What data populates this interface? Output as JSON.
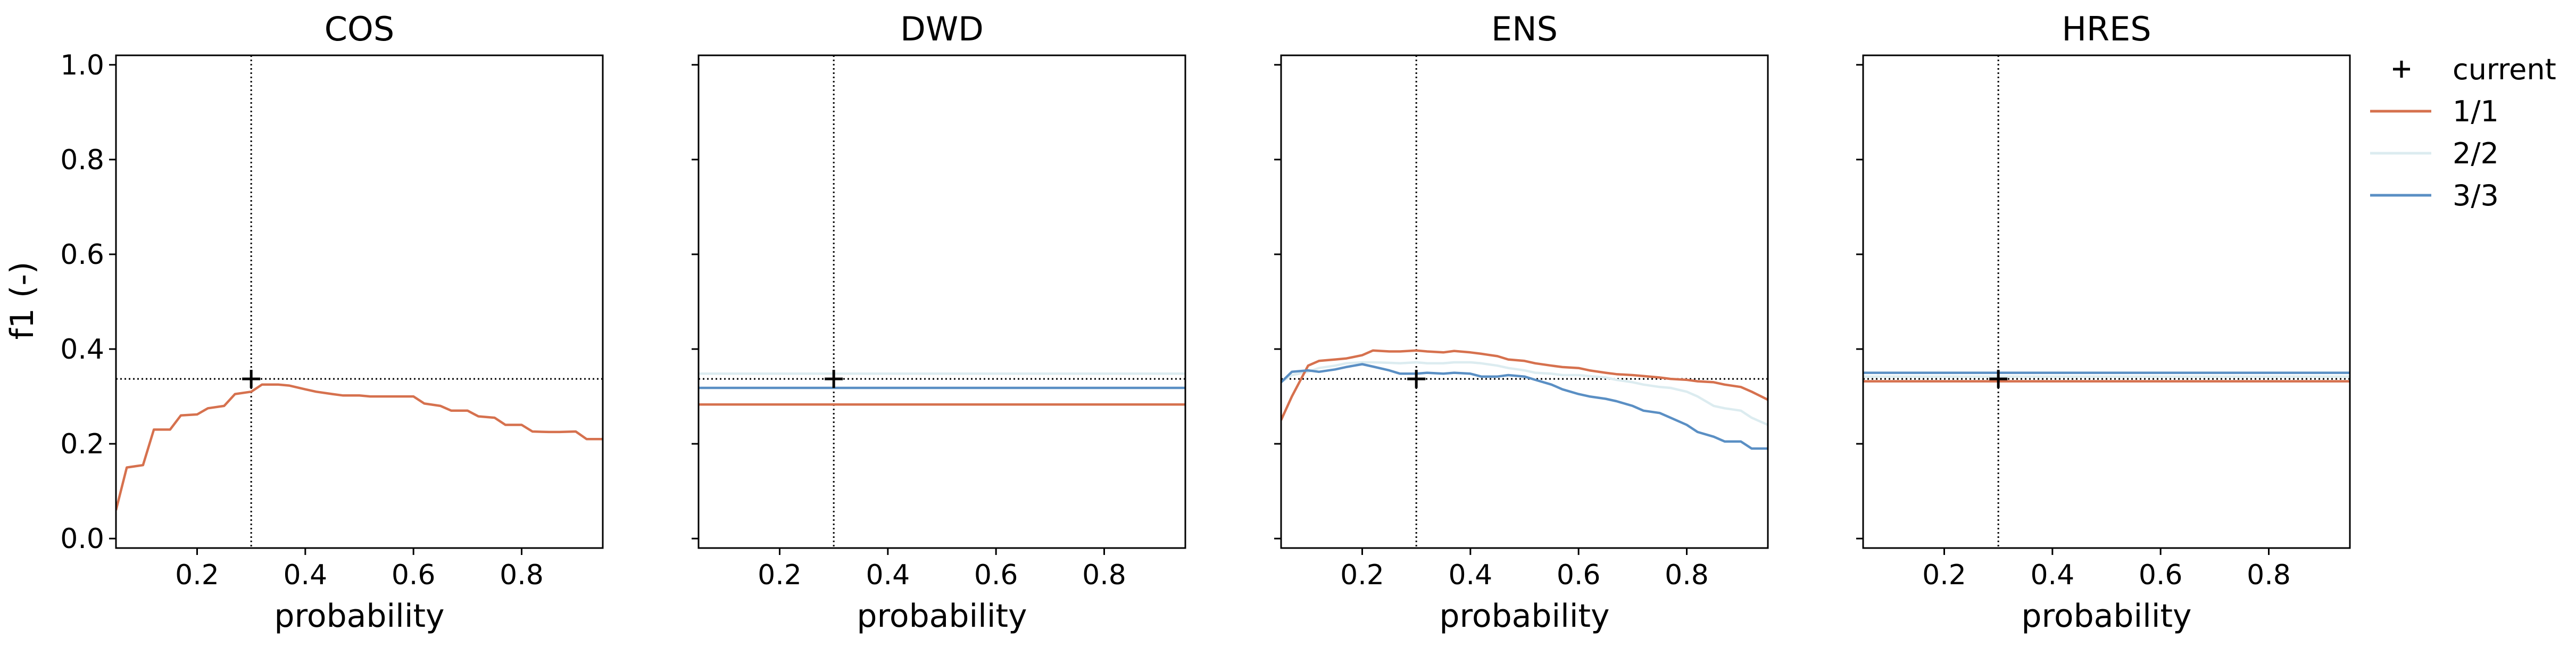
{
  "chart_data": {
    "type": "line",
    "ylabel": "f1 (-)",
    "ylim": [
      -0.02,
      1.02
    ],
    "yticks": [
      0.0,
      0.2,
      0.4,
      0.6,
      0.8,
      1.0
    ],
    "ytick_labels": [
      "0.0",
      "0.2",
      "0.4",
      "0.6",
      "0.8",
      "1.0"
    ],
    "xlim": [
      0.05,
      0.95
    ],
    "xticks": [
      0.2,
      0.4,
      0.6,
      0.8
    ],
    "xtick_labels": [
      "0.2",
      "0.4",
      "0.6",
      "0.8"
    ],
    "reference": {
      "x": 0.3,
      "y": 0.337
    },
    "legend": {
      "placement": "outside-right",
      "entries": [
        {
          "label": "current",
          "marker": "+",
          "color": "#000000"
        },
        {
          "label": "1/1",
          "color": "#d6714e"
        },
        {
          "label": "2/2",
          "color": "#dcecf0"
        },
        {
          "label": "3/3",
          "color": "#5a8fc4"
        }
      ]
    },
    "panels": [
      {
        "title": "COS",
        "xlabel": "probability",
        "show_ytick_labels": true,
        "series": [
          {
            "legend_index": 1,
            "color": "#d6714e",
            "x": [
              0.05,
              0.07,
              0.1,
              0.12,
              0.15,
              0.17,
              0.2,
              0.22,
              0.25,
              0.27,
              0.3,
              0.32,
              0.35,
              0.37,
              0.4,
              0.42,
              0.45,
              0.47,
              0.5,
              0.52,
              0.55,
              0.57,
              0.6,
              0.62,
              0.65,
              0.67,
              0.7,
              0.72,
              0.75,
              0.77,
              0.8,
              0.82,
              0.85,
              0.87,
              0.9,
              0.92,
              0.95
            ],
            "y": [
              0.06,
              0.15,
              0.155,
              0.23,
              0.23,
              0.26,
              0.262,
              0.275,
              0.28,
              0.305,
              0.31,
              0.325,
              0.325,
              0.323,
              0.315,
              0.31,
              0.305,
              0.302,
              0.302,
              0.3,
              0.3,
              0.3,
              0.3,
              0.285,
              0.28,
              0.27,
              0.27,
              0.258,
              0.255,
              0.24,
              0.24,
              0.226,
              0.225,
              0.225,
              0.226,
              0.21,
              0.21
            ]
          }
        ]
      },
      {
        "title": "DWD",
        "xlabel": "probability",
        "show_ytick_labels": false,
        "series": [
          {
            "legend_index": 2,
            "color": "#dcecf0",
            "x": [
              0.05,
              0.95
            ],
            "y": [
              0.348,
              0.348
            ]
          },
          {
            "legend_index": 3,
            "color": "#5a8fc4",
            "x": [
              0.05,
              0.95
            ],
            "y": [
              0.318,
              0.318
            ]
          },
          {
            "legend_index": 1,
            "color": "#d6714e",
            "x": [
              0.05,
              0.95
            ],
            "y": [
              0.283,
              0.283
            ]
          }
        ]
      },
      {
        "title": "ENS",
        "xlabel": "probability",
        "show_ytick_labels": false,
        "series": [
          {
            "legend_index": 2,
            "color": "#dcecf0",
            "x": [
              0.05,
              0.07,
              0.1,
              0.12,
              0.15,
              0.17,
              0.2,
              0.22,
              0.25,
              0.27,
              0.3,
              0.32,
              0.35,
              0.37,
              0.4,
              0.42,
              0.45,
              0.47,
              0.5,
              0.52,
              0.55,
              0.57,
              0.6,
              0.62,
              0.65,
              0.67,
              0.7,
              0.72,
              0.75,
              0.77,
              0.8,
              0.82,
              0.85,
              0.87,
              0.9,
              0.92,
              0.95
            ],
            "y": [
              0.33,
              0.345,
              0.352,
              0.36,
              0.365,
              0.37,
              0.372,
              0.372,
              0.371,
              0.37,
              0.372,
              0.37,
              0.37,
              0.372,
              0.372,
              0.37,
              0.365,
              0.36,
              0.355,
              0.35,
              0.348,
              0.345,
              0.345,
              0.343,
              0.34,
              0.335,
              0.33,
              0.325,
              0.32,
              0.318,
              0.31,
              0.3,
              0.28,
              0.275,
              0.27,
              0.255,
              0.24
            ]
          },
          {
            "legend_index": 1,
            "color": "#d6714e",
            "x": [
              0.05,
              0.07,
              0.1,
              0.12,
              0.15,
              0.17,
              0.2,
              0.22,
              0.25,
              0.27,
              0.3,
              0.32,
              0.35,
              0.37,
              0.4,
              0.42,
              0.45,
              0.47,
              0.5,
              0.52,
              0.55,
              0.57,
              0.6,
              0.62,
              0.65,
              0.67,
              0.7,
              0.72,
              0.75,
              0.77,
              0.8,
              0.82,
              0.85,
              0.87,
              0.9,
              0.92,
              0.95
            ],
            "y": [
              0.25,
              0.3,
              0.365,
              0.375,
              0.378,
              0.38,
              0.387,
              0.397,
              0.395,
              0.395,
              0.397,
              0.395,
              0.393,
              0.396,
              0.393,
              0.39,
              0.385,
              0.378,
              0.375,
              0.37,
              0.365,
              0.362,
              0.36,
              0.355,
              0.35,
              0.347,
              0.345,
              0.343,
              0.34,
              0.337,
              0.335,
              0.332,
              0.33,
              0.325,
              0.32,
              0.31,
              0.293
            ]
          },
          {
            "legend_index": 3,
            "color": "#5a8fc4",
            "x": [
              0.05,
              0.07,
              0.1,
              0.12,
              0.15,
              0.17,
              0.2,
              0.22,
              0.25,
              0.27,
              0.3,
              0.32,
              0.35,
              0.37,
              0.4,
              0.42,
              0.45,
              0.47,
              0.5,
              0.52,
              0.55,
              0.57,
              0.6,
              0.62,
              0.65,
              0.67,
              0.7,
              0.72,
              0.75,
              0.77,
              0.8,
              0.82,
              0.85,
              0.87,
              0.9,
              0.92,
              0.95
            ],
            "y": [
              0.33,
              0.352,
              0.355,
              0.352,
              0.357,
              0.362,
              0.368,
              0.363,
              0.355,
              0.348,
              0.348,
              0.35,
              0.348,
              0.35,
              0.348,
              0.342,
              0.342,
              0.345,
              0.342,
              0.335,
              0.325,
              0.315,
              0.305,
              0.3,
              0.295,
              0.29,
              0.28,
              0.27,
              0.265,
              0.255,
              0.24,
              0.225,
              0.215,
              0.205,
              0.205,
              0.19,
              0.19
            ]
          }
        ]
      },
      {
        "title": "HRES",
        "xlabel": "probability",
        "show_ytick_labels": false,
        "series": [
          {
            "legend_index": 2,
            "color": "#dcecf0",
            "x": [
              0.05,
              0.95
            ],
            "y": [
              0.342,
              0.342
            ]
          },
          {
            "legend_index": 3,
            "color": "#5a8fc4",
            "x": [
              0.05,
              0.95
            ],
            "y": [
              0.35,
              0.35
            ]
          },
          {
            "legend_index": 1,
            "color": "#d6714e",
            "x": [
              0.05,
              0.95
            ],
            "y": [
              0.332,
              0.332
            ]
          }
        ]
      }
    ]
  }
}
